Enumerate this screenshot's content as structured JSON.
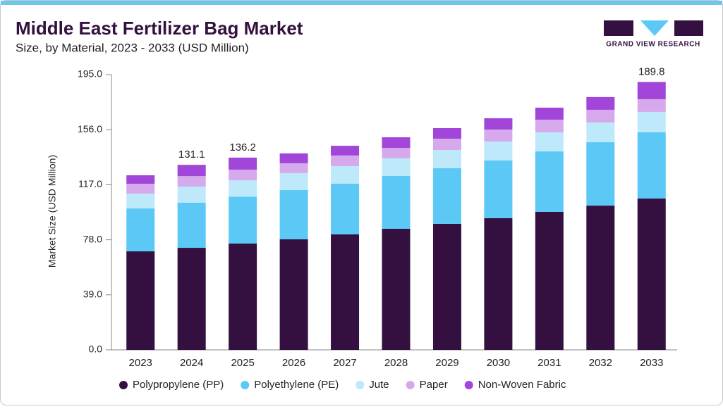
{
  "chart_data": {
    "type": "stacked_bar",
    "title": "Middle East Fertilizer Bag Market",
    "subtitle": "Size, by Material, 2023 - 2033 (USD Million)",
    "y_label": "Market Size (USD Million)",
    "categories": [
      "2023",
      "2024",
      "2025",
      "2026",
      "2027",
      "2028",
      "2029",
      "2030",
      "2031",
      "2032",
      "2033"
    ],
    "series": [
      {
        "name": "Polypropylene (PP)",
        "color": "#33103f",
        "values": [
          69.8,
          72.3,
          75.3,
          78.3,
          81.8,
          85.8,
          89.3,
          93.3,
          97.8,
          102.2,
          107.2
        ]
      },
      {
        "name": "Polyethylene (PE)",
        "color": "#5bc8f5",
        "values": [
          30.4,
          32.0,
          33.3,
          34.9,
          35.9,
          37.4,
          39.4,
          40.9,
          42.8,
          44.9,
          46.9
        ]
      },
      {
        "name": "Jute",
        "color": "#bde9fa",
        "values": [
          10.5,
          11.4,
          11.5,
          12.0,
          12.5,
          12.5,
          12.9,
          13.4,
          13.5,
          14.0,
          14.5
        ]
      },
      {
        "name": "Paper",
        "color": "#d6a9ec",
        "values": [
          7.0,
          7.4,
          7.6,
          7.0,
          7.5,
          7.4,
          8.0,
          8.5,
          9.0,
          9.0,
          9.0
        ]
      },
      {
        "name": "Non-Woven Fabric",
        "color": "#a146d9",
        "values": [
          6.0,
          8.0,
          8.5,
          7.0,
          6.9,
          7.5,
          7.5,
          8.0,
          8.5,
          9.0,
          12.2
        ]
      }
    ],
    "total_labels": [
      null,
      131.1,
      136.2,
      null,
      null,
      null,
      null,
      null,
      null,
      null,
      189.8
    ],
    "ylim": [
      0,
      195
    ],
    "yticks": [
      {
        "value": 0,
        "label": "0.0"
      },
      {
        "value": 39,
        "label": "39.0"
      },
      {
        "value": 78,
        "label": "78.0"
      },
      {
        "value": 117,
        "label": "117.0"
      },
      {
        "value": 156,
        "label": "156.0"
      },
      {
        "value": 195,
        "label": "195.0"
      }
    ],
    "legend": "bottom"
  },
  "logo": {
    "text": "GRAND VIEW RESEARCH"
  }
}
